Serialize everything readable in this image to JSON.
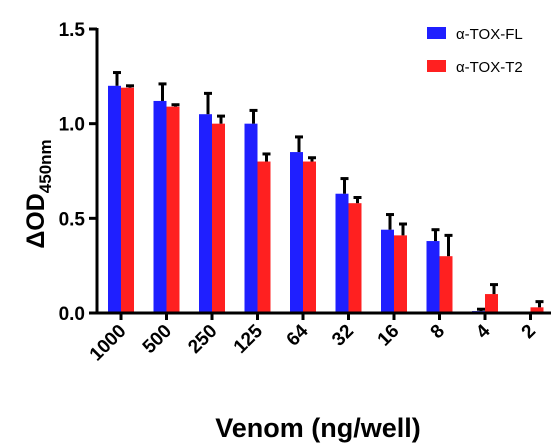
{
  "chart_data": {
    "type": "bar",
    "title": "",
    "xlabel": "Venom (ng/well)",
    "ylabel": {
      "delta": "Δ",
      "main": "OD",
      "sub": "450nm"
    },
    "ylim": [
      0,
      1.5
    ],
    "yticks": [
      "0.0",
      "0.5",
      "1.0",
      "1.5"
    ],
    "categories": [
      "1000",
      "500",
      "250",
      "125",
      "64",
      "32",
      "16",
      "8",
      "4",
      "2"
    ],
    "legend_position": "top-right",
    "series": [
      {
        "name": "α-TOX-FL",
        "color": "#1f1fff",
        "values": [
          1.2,
          1.12,
          1.05,
          1.0,
          0.85,
          0.63,
          0.44,
          0.38,
          0.01,
          0.0
        ],
        "errors": [
          0.07,
          0.09,
          0.11,
          0.07,
          0.08,
          0.08,
          0.08,
          0.06,
          0.01,
          0.0
        ]
      },
      {
        "name": "α-TOX-T2",
        "color": "#ff2020",
        "values": [
          1.19,
          1.09,
          1.0,
          0.8,
          0.8,
          0.58,
          0.41,
          0.3,
          0.1,
          0.03
        ],
        "errors": [
          0.01,
          0.01,
          0.04,
          0.04,
          0.02,
          0.03,
          0.06,
          0.11,
          0.05,
          0.03
        ]
      }
    ]
  }
}
